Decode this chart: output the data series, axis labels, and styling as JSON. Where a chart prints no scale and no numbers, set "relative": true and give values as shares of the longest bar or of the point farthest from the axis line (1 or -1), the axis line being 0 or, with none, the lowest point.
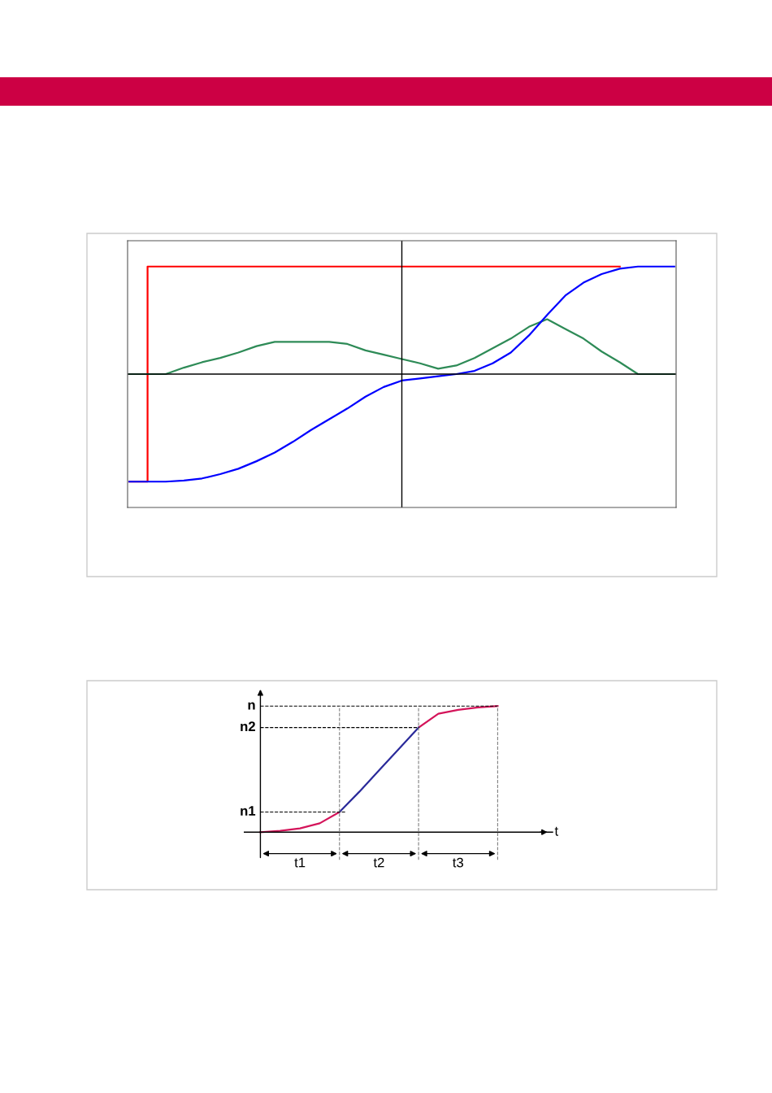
{
  "chart_data": [
    {
      "type": "line",
      "relative": true,
      "categories": [
        null,
        null,
        null,
        null,
        null,
        null,
        null,
        null,
        null,
        null,
        null,
        null,
        null,
        null,
        null,
        null,
        null,
        null,
        null,
        null,
        null,
        null,
        null,
        null,
        null,
        null,
        null,
        null,
        null,
        null,
        null
      ],
      "grid": false,
      "tick_labels": false,
      "series": [
        {
          "color": "#ff0000",
          "type": "step",
          "values": [
            -1,
            -1,
            1,
            1,
            1,
            1,
            1,
            1,
            1,
            1,
            1,
            1,
            1,
            1,
            1,
            1,
            1,
            1,
            1,
            1,
            1,
            1,
            1,
            1,
            1,
            1,
            1,
            1,
            null,
            null,
            null
          ]
        },
        {
          "color": "#2e8b57",
          "values": [
            0,
            0,
            0,
            0.06,
            0.11,
            0.15,
            0.2,
            0.26,
            0.3,
            0.3,
            0.3,
            0.3,
            0.28,
            0.22,
            0.18,
            0.14,
            0.1,
            0.05,
            0.08,
            0.15,
            0.24,
            0.33,
            0.44,
            0.51,
            0.42,
            0.33,
            0.21,
            0.11,
            0,
            0,
            0
          ]
        },
        {
          "color": "#0000ff",
          "values": [
            -1,
            -1,
            -1,
            -0.99,
            -0.97,
            -0.93,
            -0.88,
            -0.81,
            -0.73,
            -0.63,
            -0.52,
            -0.42,
            -0.32,
            -0.21,
            -0.12,
            -0.06,
            -0.04,
            -0.02,
            0,
            0.03,
            0.1,
            0.2,
            0.36,
            0.55,
            0.73,
            0.85,
            0.93,
            0.98,
            1,
            1,
            1
          ]
        }
      ]
    },
    {
      "type": "line",
      "relative": true,
      "xlabel": "t",
      "grid": false,
      "tick_labels": false,
      "categories": [
        null,
        null,
        null,
        null,
        null,
        null,
        null,
        null,
        null,
        null,
        null,
        null,
        null
      ],
      "annotations": [
        "t1",
        "t2",
        "t3"
      ],
      "series": [
        {
          "color": "#d4145a",
          "values": [
            0,
            0.01,
            0.03,
            0.07,
            0.16,
            null,
            null,
            null,
            0.83,
            0.94,
            0.97,
            0.99,
            1
          ]
        },
        {
          "color": "#2a2a9a",
          "values": [
            null,
            null,
            null,
            null,
            0.16,
            0.32,
            0.49,
            0.66,
            0.83,
            null,
            null,
            null,
            null
          ]
        }
      ],
      "ref_lines": [
        {
          "axis": "y",
          "value": 1,
          "label": "n",
          "line_style": "dashed"
        },
        {
          "axis": "y",
          "value": 0.83,
          "label": "n2",
          "line_style": "dashed"
        },
        {
          "axis": "y",
          "value": 0.16,
          "label": "n1",
          "line_style": "dashed"
        }
      ]
    }
  ]
}
